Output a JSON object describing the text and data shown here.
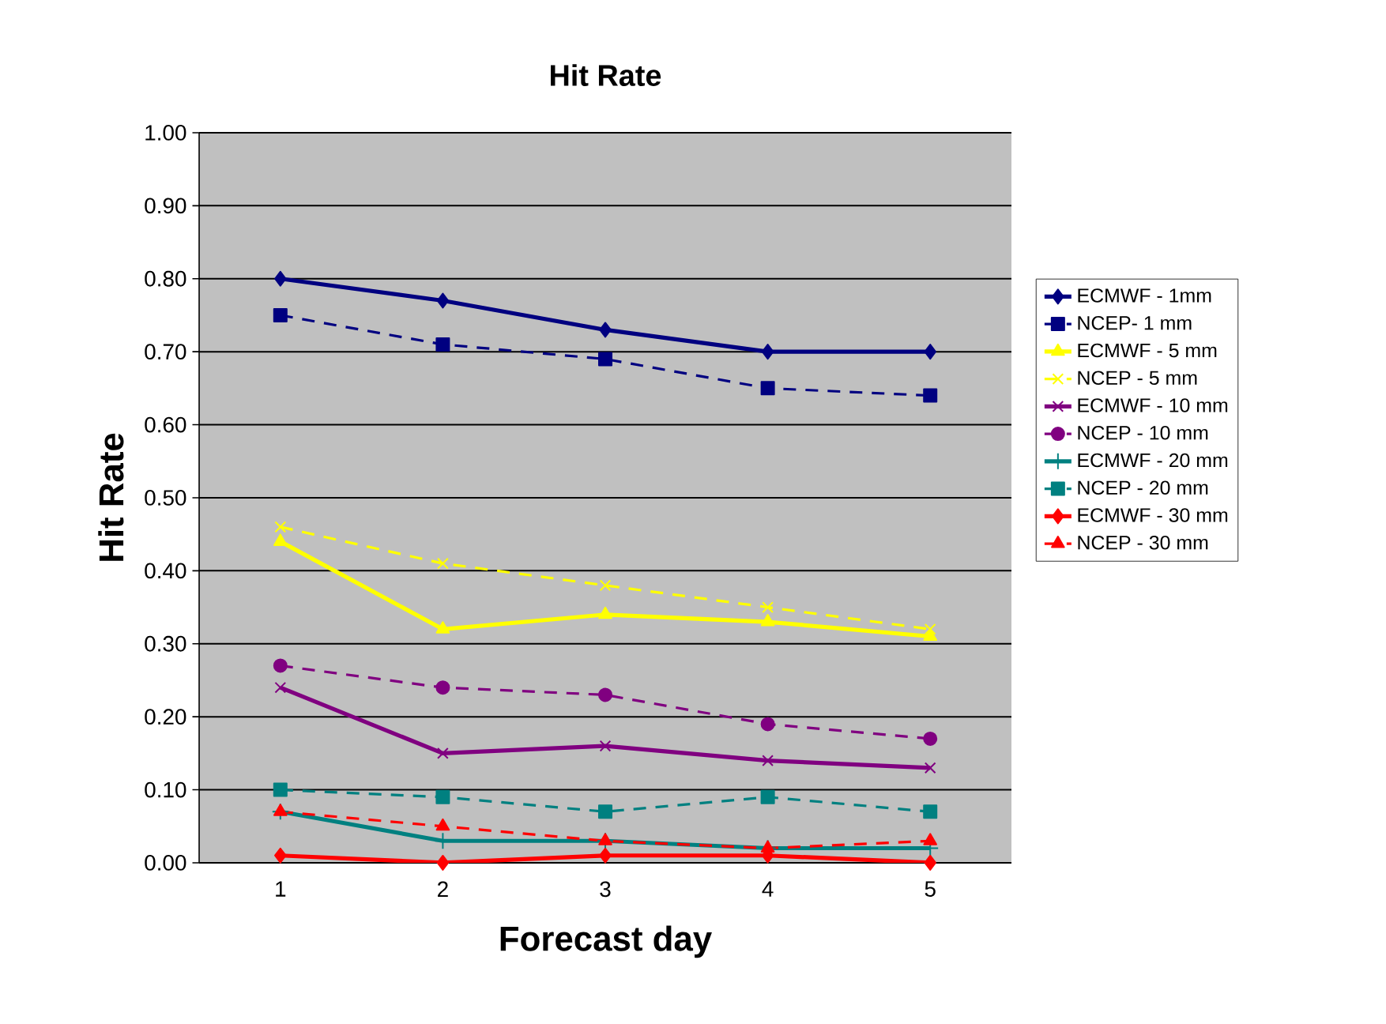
{
  "chart_data": {
    "type": "line",
    "title": "Hit  Rate",
    "xlabel": "Forecast day",
    "ylabel": "Hit Rate",
    "categories": [
      "1",
      "2",
      "3",
      "4",
      "5"
    ],
    "series": [
      {
        "name": "ECMWF - 1mm",
        "color": "#000080",
        "marker": "diamond",
        "line_style": "solid",
        "values": [
          0.8,
          0.77,
          0.73,
          0.7,
          0.7
        ]
      },
      {
        "name": "NCEP- 1 mm",
        "color": "#000080",
        "marker": "square",
        "line_style": "dashed",
        "values": [
          0.75,
          0.71,
          0.69,
          0.65,
          0.64
        ]
      },
      {
        "name": "ECMWF - 5 mm",
        "color": "#ffff00",
        "marker": "triangle",
        "line_style": "solid",
        "values": [
          0.44,
          0.32,
          0.34,
          0.33,
          0.31
        ]
      },
      {
        "name": "NCEP - 5 mm",
        "color": "#ffff00",
        "marker": "cross",
        "line_style": "dashed",
        "values": [
          0.46,
          0.41,
          0.38,
          0.35,
          0.32
        ]
      },
      {
        "name": "ECMWF - 10 mm",
        "color": "#800080",
        "marker": "cross",
        "line_style": "solid",
        "values": [
          0.24,
          0.15,
          0.16,
          0.14,
          0.13
        ]
      },
      {
        "name": "NCEP - 10 mm",
        "color": "#800080",
        "marker": "circle",
        "line_style": "dashed",
        "values": [
          0.27,
          0.24,
          0.23,
          0.19,
          0.17
        ]
      },
      {
        "name": "ECMWF - 20 mm",
        "color": "#008080",
        "marker": "plus",
        "line_style": "solid",
        "values": [
          0.07,
          0.03,
          0.03,
          0.02,
          0.02
        ]
      },
      {
        "name": "NCEP - 20 mm",
        "color": "#008080",
        "marker": "square",
        "line_style": "dashed",
        "values": [
          0.1,
          0.09,
          0.07,
          0.09,
          0.07
        ]
      },
      {
        "name": "ECMWF - 30 mm",
        "color": "#ff0000",
        "marker": "diamond",
        "line_style": "solid",
        "values": [
          0.01,
          0.0,
          0.01,
          0.01,
          0.0
        ]
      },
      {
        "name": "NCEP - 30 mm",
        "color": "#ff0000",
        "marker": "triangle",
        "line_style": "dashed",
        "values": [
          0.07,
          0.05,
          0.03,
          0.02,
          0.03
        ]
      }
    ],
    "ylim": [
      0,
      1
    ],
    "yticks": [
      {
        "value": 0,
        "label": "0.00"
      },
      {
        "value": 0.1,
        "label": "0.10"
      },
      {
        "value": 0.2,
        "label": "0.20"
      },
      {
        "value": 0.3,
        "label": "0.30"
      },
      {
        "value": 0.4,
        "label": "0.40"
      },
      {
        "value": 0.5,
        "label": "0.50"
      },
      {
        "value": 0.6,
        "label": "0.60"
      },
      {
        "value": 0.7,
        "label": "0.70"
      },
      {
        "value": 0.8,
        "label": "0.80"
      },
      {
        "value": 0.9,
        "label": "0.90"
      },
      {
        "value": 1,
        "label": "1.00"
      }
    ],
    "grid": "y",
    "legend": "right"
  }
}
